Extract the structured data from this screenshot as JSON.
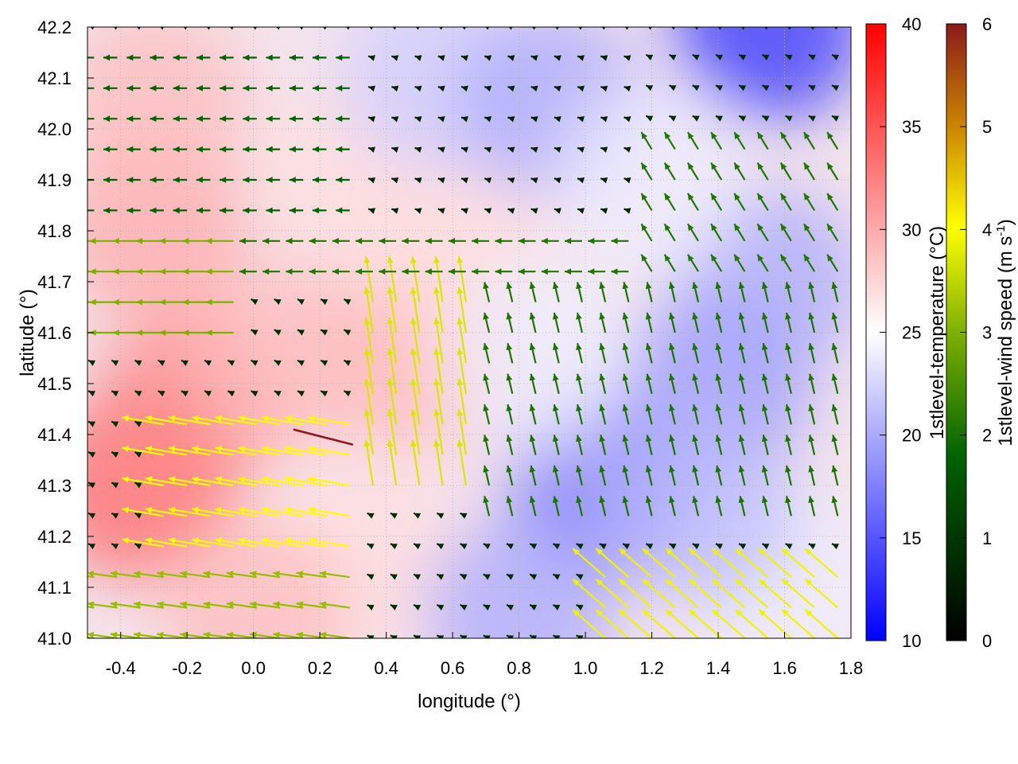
{
  "chart_data": {
    "type": "heatmap",
    "description_type": "temperature field with wind vectors",
    "xlabel": "longitude (°)",
    "ylabel": "latitude (°)",
    "xlim": [
      -0.5,
      1.8
    ],
    "ylim": [
      41.0,
      42.2
    ],
    "x_ticks": [
      "-0.4",
      "-0.2",
      "0.0",
      "0.2",
      "0.4",
      "0.6",
      "0.8",
      "1.0",
      "1.2",
      "1.4",
      "1.6",
      "1.8"
    ],
    "x_tick_values": [
      -0.4,
      -0.2,
      0.0,
      0.2,
      0.4,
      0.6,
      0.8,
      1.0,
      1.2,
      1.4,
      1.6,
      1.8
    ],
    "y_ticks": [
      "41.0",
      "41.1",
      "41.2",
      "41.3",
      "41.4",
      "41.5",
      "41.6",
      "41.7",
      "41.8",
      "41.9",
      "42.0",
      "42.1",
      "42.2"
    ],
    "y_tick_values": [
      41.0,
      41.1,
      41.2,
      41.3,
      41.4,
      41.5,
      41.6,
      41.7,
      41.8,
      41.9,
      42.0,
      42.1,
      42.2
    ],
    "grid": true,
    "temperature_colorbar": {
      "label": "1stlevel-temperature (°C)",
      "range": [
        10,
        40
      ],
      "ticks": [
        "10",
        "15",
        "20",
        "25",
        "30",
        "35",
        "40"
      ],
      "tick_values": [
        10,
        15,
        20,
        25,
        30,
        35,
        40
      ],
      "colors": [
        "#0000ff",
        "#ffffff",
        "#ff0000"
      ]
    },
    "wind_colorbar": {
      "label_main": "1stlevel-wind speed (m s",
      "label_sup": "-1",
      "label_end": ")",
      "range": [
        0,
        6
      ],
      "ticks": [
        "0",
        "1",
        "2",
        "3",
        "4",
        "5",
        "6"
      ],
      "tick_values": [
        0,
        1,
        2,
        3,
        4,
        5,
        6
      ],
      "colors": [
        "#000000",
        "#006400",
        "#7fb000",
        "#ffff00",
        "#cc8800",
        "#8b1a1a"
      ]
    },
    "temperature_field": [
      {
        "lon": -0.35,
        "lat": 41.3,
        "t": 34
      },
      {
        "lon": -0.2,
        "lat": 41.45,
        "t": 32
      },
      {
        "lon": -0.3,
        "lat": 41.8,
        "t": 30
      },
      {
        "lon": -0.3,
        "lat": 42.05,
        "t": 29
      },
      {
        "lon": 0.1,
        "lat": 41.55,
        "t": 29
      },
      {
        "lon": 0.3,
        "lat": 41.9,
        "t": 27
      },
      {
        "lon": 0.5,
        "lat": 41.55,
        "t": 29
      },
      {
        "lon": 0.6,
        "lat": 41.8,
        "t": 27
      },
      {
        "lon": 0.35,
        "lat": 41.15,
        "t": 27
      },
      {
        "lon": 0.0,
        "lat": 41.05,
        "t": 29
      },
      {
        "lon": 0.55,
        "lat": 42.1,
        "t": 22
      },
      {
        "lon": 0.9,
        "lat": 42.05,
        "t": 20
      },
      {
        "lon": 1.05,
        "lat": 41.3,
        "t": 17
      },
      {
        "lon": 0.8,
        "lat": 41.05,
        "t": 20
      },
      {
        "lon": 1.4,
        "lat": 41.5,
        "t": 19
      },
      {
        "lon": 1.55,
        "lat": 41.7,
        "t": 20
      },
      {
        "lon": 1.55,
        "lat": 42.2,
        "t": 13
      },
      {
        "lon": 1.2,
        "lat": 41.9,
        "t": 24
      },
      {
        "lon": 1.6,
        "lat": 41.1,
        "t": 24
      },
      {
        "lon": 1.35,
        "lat": 41.25,
        "t": 21
      },
      {
        "lon": 0.85,
        "lat": 41.55,
        "t": 24
      }
    ],
    "wind_regions": [
      {
        "lon_min": -0.5,
        "lon_max": 0.3,
        "lat_min": 41.8,
        "lat_max": 42.2,
        "u": -1.2,
        "v": 0.0
      },
      {
        "lon_min": -0.5,
        "lon_max": 0.0,
        "lat_min": 41.6,
        "lat_max": 41.8,
        "u": -2.4,
        "v": 0.0
      },
      {
        "lon_min": 0.3,
        "lon_max": 1.2,
        "lat_min": 41.8,
        "lat_max": 42.2,
        "u": -0.4,
        "v": 0.1
      },
      {
        "lon_min": 0.0,
        "lon_max": 1.2,
        "lat_min": 41.7,
        "lat_max": 41.8,
        "u": -1.5,
        "v": 0.0
      },
      {
        "lon_min": -0.3,
        "lon_max": 0.3,
        "lat_min": 41.15,
        "lat_max": 41.45,
        "u": -3.6,
        "v": 0.5
      },
      {
        "lon_min": 0.3,
        "lon_max": 0.7,
        "lat_min": 41.3,
        "lat_max": 41.7,
        "u": -0.6,
        "v": 3.2
      },
      {
        "lon_min": -0.5,
        "lon_max": 0.3,
        "lat_min": 41.0,
        "lat_max": 41.15,
        "u": -2.6,
        "v": 0.3
      },
      {
        "lon_min": 0.7,
        "lon_max": 1.8,
        "lat_min": 41.2,
        "lat_max": 41.7,
        "u": -0.4,
        "v": 1.4
      },
      {
        "lon_min": 1.0,
        "lon_max": 1.8,
        "lat_min": 41.0,
        "lat_max": 41.15,
        "u": -2.8,
        "v": 2.0
      },
      {
        "lon_min": 1.2,
        "lon_max": 1.8,
        "lat_min": 41.7,
        "lat_max": 42.0,
        "u": -0.9,
        "v": 1.2
      }
    ],
    "max_wind_vector": {
      "lon_start": 0.3,
      "lat_start": 41.38,
      "lon_end": 0.12,
      "lat_end": 41.41,
      "speed": 6
    }
  }
}
